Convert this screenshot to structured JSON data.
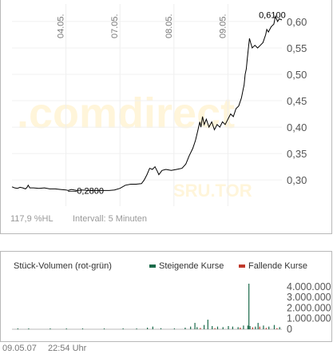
{
  "watermark": {
    "main": ".comdirect",
    "code": "SRU.TOR"
  },
  "status": {
    "performance": "117,9 %HL",
    "interval": "Intervall: 5 Minuten"
  },
  "volume_panel": {
    "title": "Stück-Volumen (rot-grün)",
    "legend_up": "Steigende Kurse",
    "legend_down": "Fallende Kurse",
    "up_color": "#1a6a4a",
    "down_color": "#c0392b"
  },
  "footer": {
    "date": "09.05.07",
    "time": "22:54 Uhr"
  },
  "chart_data": [
    {
      "type": "line",
      "x_tick_labels": [
        "04.05.",
        "07.05.",
        "08.05.",
        "09.05."
      ],
      "y_ticks": [
        0.3,
        0.35,
        0.4,
        0.45,
        0.5,
        0.55,
        0.6
      ],
      "y_tick_labels": [
        "0,30",
        "0,35",
        "0,40",
        "0,45",
        "0,50",
        "0,55",
        "0,60"
      ],
      "ylim": [
        0.27,
        0.615
      ],
      "x_day_range": [
        0,
        5
      ],
      "line_color": "#000000",
      "annotations": [
        {
          "label": "0,2800",
          "x": 1.04,
          "y": 0.28
        },
        {
          "label": "0,6100",
          "x": 4.72,
          "y": 0.61
        }
      ],
      "series": [
        {
          "values": [
            [
              0.0,
              0.287
            ],
            [
              0.05,
              0.285
            ],
            [
              0.1,
              0.284
            ],
            [
              0.15,
              0.286
            ],
            [
              0.2,
              0.285
            ],
            [
              0.25,
              0.283
            ],
            [
              0.28,
              0.286
            ],
            [
              0.3,
              0.29
            ],
            [
              0.33,
              0.285
            ],
            [
              0.4,
              0.285
            ],
            [
              0.5,
              0.284
            ],
            [
              0.6,
              0.285
            ],
            [
              0.7,
              0.283
            ],
            [
              0.8,
              0.283
            ],
            [
              0.9,
              0.282
            ],
            [
              1.0,
              0.281
            ],
            [
              1.04,
              0.28
            ],
            [
              1.1,
              0.282
            ],
            [
              1.2,
              0.28
            ],
            [
              1.3,
              0.281
            ],
            [
              1.4,
              0.28
            ],
            [
              1.5,
              0.28
            ],
            [
              1.6,
              0.28
            ],
            [
              1.7,
              0.28
            ],
            [
              1.8,
              0.28
            ],
            [
              1.9,
              0.281
            ],
            [
              2.0,
              0.284
            ],
            [
              2.1,
              0.29
            ],
            [
              2.2,
              0.292
            ],
            [
              2.3,
              0.292
            ],
            [
              2.4,
              0.293
            ],
            [
              2.45,
              0.3
            ],
            [
              2.5,
              0.31
            ],
            [
              2.55,
              0.322
            ],
            [
              2.6,
              0.32
            ],
            [
              2.65,
              0.325
            ],
            [
              2.7,
              0.315
            ],
            [
              2.72,
              0.31
            ],
            [
              2.78,
              0.318
            ],
            [
              2.85,
              0.32
            ],
            [
              2.95,
              0.318
            ],
            [
              3.05,
              0.32
            ],
            [
              3.15,
              0.322
            ],
            [
              3.22,
              0.33
            ],
            [
              3.28,
              0.345
            ],
            [
              3.35,
              0.36
            ],
            [
              3.4,
              0.375
            ],
            [
              3.44,
              0.392
            ],
            [
              3.48,
              0.41
            ],
            [
              3.5,
              0.4
            ],
            [
              3.53,
              0.42
            ],
            [
              3.56,
              0.405
            ],
            [
              3.6,
              0.415
            ],
            [
              3.65,
              0.4
            ],
            [
              3.7,
              0.41
            ],
            [
              3.75,
              0.395
            ],
            [
              3.8,
              0.405
            ],
            [
              3.85,
              0.4
            ],
            [
              3.9,
              0.41
            ],
            [
              3.95,
              0.405
            ],
            [
              4.0,
              0.415
            ],
            [
              4.05,
              0.425
            ],
            [
              4.1,
              0.42
            ],
            [
              4.15,
              0.435
            ],
            [
              4.2,
              0.44
            ],
            [
              4.25,
              0.455
            ],
            [
              4.28,
              0.47
            ],
            [
              4.3,
              0.48
            ],
            [
              4.32,
              0.5
            ],
            [
              4.34,
              0.51
            ],
            [
              4.36,
              0.53
            ],
            [
              4.38,
              0.55
            ],
            [
              4.4,
              0.568
            ],
            [
              4.42,
              0.56
            ],
            [
              4.45,
              0.55
            ],
            [
              4.5,
              0.555
            ],
            [
              4.55,
              0.55
            ],
            [
              4.6,
              0.555
            ],
            [
              4.65,
              0.56
            ],
            [
              4.7,
              0.575
            ],
            [
              4.72,
              0.585
            ],
            [
              4.75,
              0.58
            ],
            [
              4.8,
              0.59
            ],
            [
              4.85,
              0.595
            ],
            [
              4.88,
              0.61
            ],
            [
              4.92,
              0.6
            ],
            [
              4.95,
              0.605
            ],
            [
              5.0,
              0.603
            ]
          ]
        }
      ]
    },
    {
      "type": "bar",
      "title": "Stück-Volumen (rot-grün)",
      "y_ticks": [
        0,
        1000000,
        2000000,
        3000000,
        4000000
      ],
      "y_tick_labels": [
        "0",
        "1.000.000",
        "2.000.000",
        "3.000.000",
        "4.000.000"
      ],
      "ylim": [
        0,
        4300000
      ],
      "x_day_range": [
        0,
        5
      ],
      "series": [
        {
          "name": "Steigende Kurse",
          "color": "#1a6a4a",
          "values": [
            [
              0.1,
              60000
            ],
            [
              0.3,
              50000
            ],
            [
              0.7,
              40000
            ],
            [
              1.0,
              60000
            ],
            [
              1.3,
              50000
            ],
            [
              1.7,
              40000
            ],
            [
              2.05,
              80000
            ],
            [
              2.3,
              60000
            ],
            [
              2.5,
              150000
            ],
            [
              2.6,
              250000
            ],
            [
              2.75,
              100000
            ],
            [
              3.0,
              80000
            ],
            [
              3.2,
              150000
            ],
            [
              3.3,
              250000
            ],
            [
              3.38,
              600000
            ],
            [
              3.42,
              200000
            ],
            [
              3.55,
              400000
            ],
            [
              3.62,
              900000
            ],
            [
              3.7,
              300000
            ],
            [
              3.8,
              250000
            ],
            [
              3.9,
              200000
            ],
            [
              4.0,
              300000
            ],
            [
              4.08,
              250000
            ],
            [
              4.18,
              200000
            ],
            [
              4.28,
              350000
            ],
            [
              4.36,
              350000
            ],
            [
              4.38,
              4500000
            ],
            [
              4.4,
              300000
            ],
            [
              4.5,
              250000
            ],
            [
              4.55,
              600000
            ],
            [
              4.65,
              350000
            ],
            [
              4.75,
              250000
            ],
            [
              4.85,
              400000
            ],
            [
              4.95,
              200000
            ]
          ]
        },
        {
          "name": "Fallende Kurse",
          "color": "#c0392b",
          "values": [
            [
              3.48,
              120000
            ],
            [
              3.75,
              100000
            ],
            [
              4.22,
              150000
            ],
            [
              4.45,
              180000
            ],
            [
              4.58,
              250000
            ],
            [
              4.7,
              120000
            ],
            [
              4.9,
              100000
            ]
          ]
        }
      ]
    }
  ]
}
